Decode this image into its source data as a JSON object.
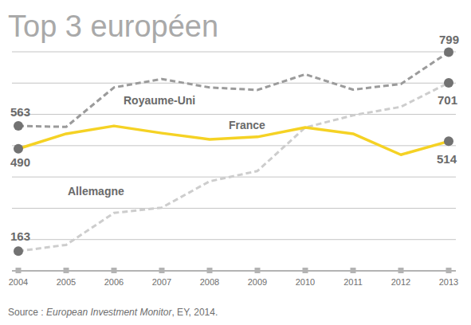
{
  "chart_data": {
    "type": "line",
    "title": "Top 3 européen",
    "source": [
      "Source : ",
      "European Investment Monitor",
      ", EY, 2014."
    ],
    "x": [
      2004,
      2005,
      2006,
      2007,
      2008,
      2009,
      2010,
      2011,
      2012,
      2013
    ],
    "xlim": [
      2004,
      2013
    ],
    "xticks": [
      2004,
      2005,
      2006,
      2007,
      2008,
      2009,
      2010,
      2011,
      2012,
      2013
    ],
    "ylim": [
      100,
      800
    ],
    "yticks": [
      100,
      200,
      300,
      400,
      500,
      600,
      700,
      800
    ],
    "grid": true,
    "tick_labels": "x",
    "marker": "circle",
    "series": [
      {
        "name": "Royaume-Uni",
        "color": "#9b9b9b",
        "line_style": "dashed",
        "values": [
          563,
          560,
          686,
          713,
          686,
          678,
          728,
          679,
          697,
          799
        ],
        "value_labels": [
          "563",
          null,
          null,
          null,
          null,
          null,
          null,
          null,
          null,
          "799"
        ]
      },
      {
        "name": "France",
        "color": "#f5d224",
        "line_style": "solid",
        "values": [
          490,
          538,
          563,
          540,
          520,
          528,
          558,
          538,
          471,
          514
        ],
        "value_labels": [
          "490",
          null,
          null,
          null,
          null,
          null,
          null,
          null,
          null,
          "514"
        ]
      },
      {
        "name": "Allemagne",
        "color": "#cdcdcd",
        "line_style": "dashed",
        "values": [
          163,
          183,
          285,
          302,
          386,
          419,
          558,
          597,
          624,
          701
        ],
        "value_labels": [
          "163",
          null,
          null,
          null,
          null,
          null,
          null,
          null,
          null,
          "701"
        ]
      }
    ]
  }
}
